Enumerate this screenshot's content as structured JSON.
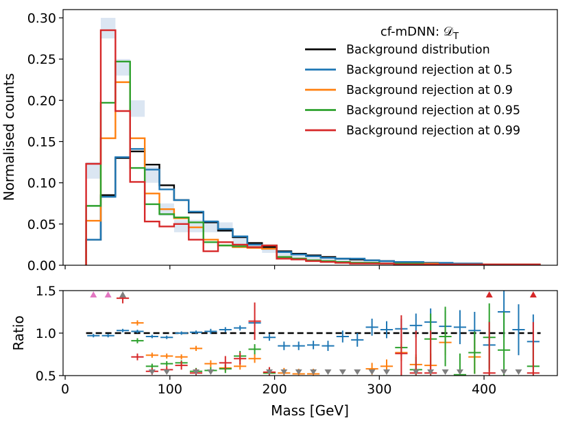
{
  "chart_data": {
    "type": "line",
    "subtype": "step-histogram-with-ratio",
    "legend": {
      "title": "cf-mDNN: 𝒟",
      "title_subscript": "T",
      "placement": "top-right"
    },
    "xlabel": "Mass [GeV]",
    "x_ticks": [
      0,
      100,
      200,
      300,
      400
    ],
    "x_tick_labels": [
      "0",
      "100",
      "200",
      "300",
      "400"
    ],
    "xlim": [
      -2,
      470
    ],
    "bin_edges": [
      20,
      34,
      48,
      62,
      76,
      90,
      104,
      118,
      132,
      146,
      160,
      174,
      188,
      202,
      216,
      230,
      244,
      258,
      272,
      286,
      300,
      314,
      328,
      342,
      356,
      370,
      384,
      398,
      412,
      426,
      440,
      454
    ],
    "main_panel": {
      "ylabel": "Normalised counts",
      "ylim": [
        0,
        0.31
      ],
      "y_ticks": [
        0,
        0.05,
        0.1,
        0.15,
        0.2,
        0.25,
        0.3
      ],
      "y_tick_labels": [
        "0.00",
        "0.05",
        "0.10",
        "0.15",
        "0.20",
        "0.25",
        "0.30"
      ],
      "uncertainty_band": {
        "color": "#dbe6f2",
        "lower": [
          0.105,
          0.275,
          0.23,
          0.18,
          0.1,
          0.06,
          0.04,
          0.04,
          0.04,
          0.04,
          0.025,
          0.02,
          0.015,
          0.01,
          0.008,
          0.006,
          0.005,
          0.004,
          0.003,
          0.003,
          0.002,
          0.002,
          0.001,
          0.001,
          0.001,
          0.001,
          0.001,
          0,
          0,
          0,
          0
        ],
        "upper": [
          0.125,
          0.3,
          0.25,
          0.2,
          0.12,
          0.075,
          0.055,
          0.055,
          0.055,
          0.052,
          0.035,
          0.028,
          0.023,
          0.016,
          0.012,
          0.01,
          0.008,
          0.007,
          0.006,
          0.005,
          0.004,
          0.004,
          0.003,
          0.003,
          0.003,
          0.003,
          0.002,
          0.002,
          0.002,
          0.002,
          0.002
        ]
      },
      "series": [
        {
          "name": "Background distribution",
          "color": "#000000",
          "values": [
            0.031,
            0.085,
            0.13,
            0.138,
            0.122,
            0.097,
            0.079,
            0.064,
            0.052,
            0.042,
            0.034,
            0.027,
            0.022,
            0.017,
            0.014,
            0.012,
            0.01,
            0.008,
            0.007,
            0.006,
            0.005,
            0.004,
            0.004,
            0.003,
            0.002,
            0.002,
            0.002,
            0.001,
            0.001,
            0.001,
            0.001
          ]
        },
        {
          "name": "Background rejection at 0.5",
          "color": "#1f77b4",
          "values": [
            0.031,
            0.083,
            0.131,
            0.141,
            0.116,
            0.092,
            0.079,
            0.065,
            0.053,
            0.044,
            0.035,
            0.025,
            0.02,
            0.016,
            0.013,
            0.011,
            0.009,
            0.008,
            0.008,
            0.006,
            0.005,
            0.004,
            0.004,
            0.003,
            0.003,
            0.002,
            0.002,
            0.001,
            0.001,
            0.001,
            0.001
          ]
        },
        {
          "name": "Background rejection at 0.9",
          "color": "#ff7f0e",
          "values": [
            0.054,
            0.154,
            0.222,
            0.154,
            0.087,
            0.068,
            0.057,
            0.046,
            0.031,
            0.024,
            0.022,
            0.021,
            0.02,
            0.01,
            0.008,
            0.006,
            0.005,
            0.004,
            0.003,
            0.003,
            0.002,
            0.002,
            0.002,
            0.002,
            0.001,
            0.001,
            0.001,
            0.001,
            0.001,
            0.001,
            0.001
          ]
        },
        {
          "name": "Background rejection at 0.95",
          "color": "#2ca02c",
          "values": [
            0.072,
            0.197,
            0.247,
            0.118,
            0.074,
            0.062,
            0.058,
            0.052,
            0.028,
            0.024,
            0.023,
            0.022,
            0.024,
            0.01,
            0.008,
            0.006,
            0.005,
            0.004,
            0.003,
            0.003,
            0.002,
            0.002,
            0.002,
            0.001,
            0.001,
            0.001,
            0.001,
            0.001,
            0.001,
            0.001,
            0.001
          ]
        },
        {
          "name": "Background rejection at 0.99",
          "color": "#d62728",
          "values": [
            0.123,
            0.285,
            0.187,
            0.101,
            0.053,
            0.047,
            0.05,
            0.031,
            0.017,
            0.028,
            0.025,
            0.022,
            0.024,
            0.008,
            0.007,
            0.005,
            0.004,
            0.003,
            0.002,
            0.002,
            0.002,
            0.001,
            0.001,
            0.001,
            0.001,
            0.001,
            0.001,
            0.001,
            0.001,
            0.001,
            0.001
          ]
        }
      ]
    },
    "ratio_panel": {
      "ylabel": "Ratio",
      "ylim": [
        0.5,
        1.5
      ],
      "y_ticks": [
        0.5,
        1.0,
        1.5
      ],
      "y_tick_labels": [
        "0.5",
        "1.0",
        "1.5"
      ],
      "reference_line": 1.0,
      "series": [
        {
          "name": "Background rejection at 0.5",
          "color": "#1f77b4",
          "points": [
            [
              27,
              0.97,
              0.02
            ],
            [
              41,
              0.97,
              0.02
            ],
            [
              55,
              1.03,
              0.02
            ],
            [
              69,
              1.02,
              0.02
            ],
            [
              83,
              0.96,
              0.02
            ],
            [
              97,
              0.95,
              0.02
            ],
            [
              111,
              1.0,
              0.02
            ],
            [
              125,
              1.01,
              0.02
            ],
            [
              139,
              1.02,
              0.03
            ],
            [
              153,
              1.04,
              0.03
            ],
            [
              167,
              1.06,
              0.03
            ],
            [
              181,
              1.12,
              0.04
            ],
            [
              195,
              0.95,
              0.04
            ],
            [
              209,
              0.85,
              0.05
            ],
            [
              223,
              0.85,
              0.05
            ],
            [
              237,
              0.86,
              0.05
            ],
            [
              251,
              0.85,
              0.06
            ],
            [
              265,
              0.96,
              0.07
            ],
            [
              279,
              0.92,
              0.08
            ],
            [
              293,
              1.07,
              0.1
            ],
            [
              307,
              1.04,
              0.1
            ],
            [
              321,
              1.05,
              0.12
            ],
            [
              335,
              1.09,
              0.14
            ],
            [
              349,
              1.13,
              0.16
            ],
            [
              363,
              1.08,
              0.18
            ],
            [
              377,
              1.07,
              0.2
            ],
            [
              391,
              1.03,
              0.22
            ],
            [
              405,
              0.86,
              0.28
            ],
            [
              419,
              1.25,
              0.3
            ],
            [
              433,
              1.04,
              0.3
            ],
            [
              447,
              0.9,
              0.32
            ]
          ]
        },
        {
          "name": "Background rejection at 0.9",
          "color": "#ff7f0e",
          "points": [
            [
              69,
              1.12,
              0.03
            ],
            [
              83,
              0.74,
              0.03
            ],
            [
              97,
              0.73,
              0.03
            ],
            [
              111,
              0.72,
              0.03
            ],
            [
              125,
              0.82,
              0.03
            ],
            [
              139,
              0.64,
              0.04
            ],
            [
              153,
              0.59,
              0.04
            ],
            [
              167,
              0.61,
              0.04
            ],
            [
              181,
              0.7,
              0.05
            ],
            [
              195,
              0.53,
              0.05
            ],
            [
              209,
              0.53,
              0.06
            ],
            [
              223,
              0.52,
              0.06
            ],
            [
              237,
              0.52,
              0.06
            ],
            [
              293,
              0.58,
              0.07
            ],
            [
              307,
              0.61,
              0.08
            ],
            [
              321,
              0.77,
              0.1
            ],
            [
              335,
              0.63,
              0.12
            ],
            [
              349,
              0.62,
              0.14
            ],
            [
              363,
              0.89,
              0.15
            ],
            [
              391,
              0.72,
              0.2
            ]
          ]
        },
        {
          "name": "Background rejection at 0.95",
          "color": "#2ca02c",
          "points": [
            [
              69,
              0.91,
              0.03
            ],
            [
              83,
              0.61,
              0.03
            ],
            [
              97,
              0.64,
              0.03
            ],
            [
              111,
              0.65,
              0.03
            ],
            [
              125,
              0.55,
              0.04
            ],
            [
              139,
              0.56,
              0.04
            ],
            [
              153,
              0.58,
              0.05
            ],
            [
              167,
              0.73,
              0.06
            ],
            [
              181,
              0.81,
              0.06
            ],
            [
              195,
              0.53,
              0.06
            ],
            [
              321,
              0.83,
              0.1
            ],
            [
              335,
              0.57,
              0.15
            ],
            [
              349,
              0.93,
              0.3
            ],
            [
              363,
              0.96,
              0.35
            ],
            [
              377,
              0.51,
              0.25
            ],
            [
              391,
              0.77,
              0.25
            ],
            [
              405,
              0.95,
              0.4
            ],
            [
              419,
              0.8,
              0.45
            ],
            [
              447,
              0.61,
              0.3
            ]
          ]
        },
        {
          "name": "Background rejection at 0.99",
          "color": "#d62728",
          "points": [
            [
              55,
              1.41,
              0.06
            ],
            [
              69,
              0.72,
              0.04
            ],
            [
              83,
              0.55,
              0.04
            ],
            [
              97,
              0.57,
              0.04
            ],
            [
              111,
              0.62,
              0.05
            ],
            [
              125,
              0.53,
              0.05
            ],
            [
              153,
              0.65,
              0.08
            ],
            [
              167,
              0.7,
              0.07
            ],
            [
              181,
              1.14,
              0.22
            ],
            [
              195,
              0.54,
              0.06
            ],
            [
              321,
              0.76,
              0.45
            ],
            [
              335,
              0.53,
              0.5
            ],
            [
              349,
              0.53,
              0.5
            ],
            [
              405,
              0.53,
              0.6
            ],
            [
              447,
              0.53,
              0.6
            ]
          ]
        }
      ],
      "markers_above": [
        {
          "x": 27,
          "color": "#e377c2"
        },
        {
          "x": 41,
          "color": "#e377c2"
        },
        {
          "x": 55,
          "color": "#7f7f7f"
        },
        {
          "x": 405,
          "color": "#d62728"
        },
        {
          "x": 447,
          "color": "#d62728"
        }
      ],
      "markers_below": [
        {
          "x": 83,
          "color": "#7f7f7f"
        },
        {
          "x": 97,
          "color": "#7f7f7f"
        },
        {
          "x": 125,
          "color": "#7f7f7f"
        },
        {
          "x": 139,
          "color": "#7f7f7f"
        },
        {
          "x": 195,
          "color": "#7f7f7f"
        },
        {
          "x": 209,
          "color": "#7f7f7f"
        },
        {
          "x": 223,
          "color": "#7f7f7f"
        },
        {
          "x": 237,
          "color": "#7f7f7f"
        },
        {
          "x": 251,
          "color": "#7f7f7f"
        },
        {
          "x": 265,
          "color": "#7f7f7f"
        },
        {
          "x": 279,
          "color": "#7f7f7f"
        },
        {
          "x": 293,
          "color": "#7f7f7f"
        },
        {
          "x": 307,
          "color": "#7f7f7f"
        },
        {
          "x": 335,
          "color": "#7f7f7f"
        },
        {
          "x": 349,
          "color": "#7f7f7f"
        },
        {
          "x": 363,
          "color": "#7f7f7f"
        },
        {
          "x": 377,
          "color": "#7f7f7f"
        },
        {
          "x": 419,
          "color": "#7f7f7f"
        },
        {
          "x": 433,
          "color": "#7f7f7f"
        }
      ]
    }
  }
}
